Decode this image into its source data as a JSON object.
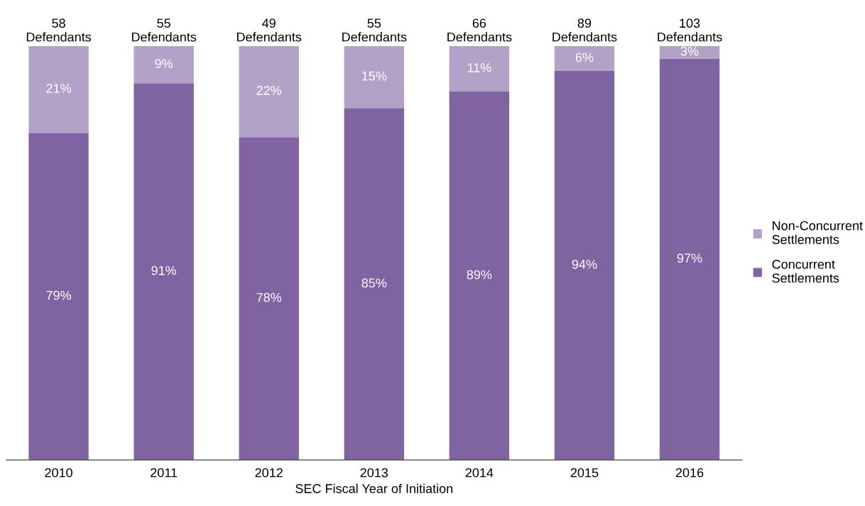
{
  "chart_data": {
    "type": "bar",
    "stacked": true,
    "xlabel": "SEC Fiscal Year of Initiation",
    "categories": [
      "2010",
      "2011",
      "2012",
      "2013",
      "2014",
      "2015",
      "2016"
    ],
    "series": [
      {
        "name": "Concurrent\nSettlements",
        "color": "#8064a2",
        "values": [
          79,
          91,
          78,
          85,
          89,
          94,
          97
        ],
        "value_labels": [
          "79%",
          "91%",
          "78%",
          "85%",
          "89%",
          "94%",
          "97%"
        ]
      },
      {
        "name": "Non-Concurrent\nSettlements",
        "color": "#b3a2c7",
        "values": [
          21,
          9,
          22,
          15,
          11,
          6,
          3
        ],
        "value_labels": [
          "21%",
          "9%",
          "22%",
          "15%",
          "11%",
          "6%",
          "3%"
        ]
      }
    ],
    "annotations": [
      {
        "text": "58\nDefendants",
        "x": "2010",
        "y": 100
      },
      {
        "text": "55\nDefendants",
        "x": "2011",
        "y": 100
      },
      {
        "text": "49\nDefendants",
        "x": "2012",
        "y": 100
      },
      {
        "text": "55\nDefendants",
        "x": "2013",
        "y": 100
      },
      {
        "text": "66\nDefendants",
        "x": "2014",
        "y": 100
      },
      {
        "text": "89\nDefendants",
        "x": "2015",
        "y": 100
      },
      {
        "text": "103\nDefendants",
        "x": "2016",
        "y": 100
      }
    ],
    "tick_labels": "x",
    "legend": "right",
    "grid": false
  }
}
